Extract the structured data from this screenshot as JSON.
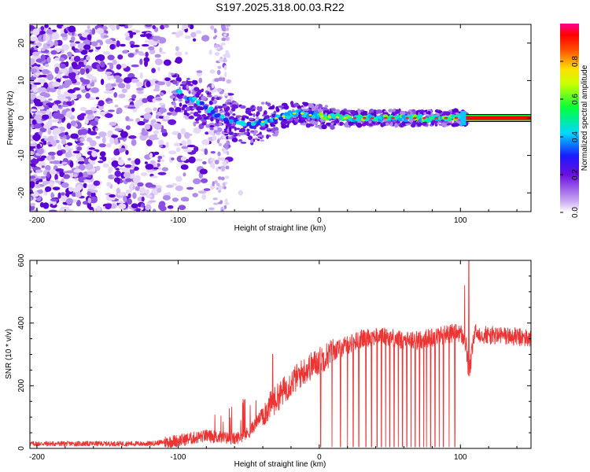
{
  "title": "S197.2025.318.00.03.R22",
  "chart_data": [
    {
      "type": "heatmap",
      "name": "spectrogram",
      "xlabel": "Height of straight line (km)",
      "ylabel": "Frequency (Hz)",
      "xlim": [
        -205,
        150
      ],
      "ylim": [
        -25,
        25
      ],
      "x_ticks": [
        -200,
        -100,
        0,
        100
      ],
      "x_tick_labels": [
        "-200",
        "-100",
        "0",
        "100"
      ],
      "y_ticks": [
        -20,
        -10,
        0,
        10,
        20
      ],
      "y_tick_labels": [
        "-20",
        "-10",
        "0",
        "10",
        "20"
      ],
      "colorbar": {
        "label": "Normalized spectral amplitude",
        "range": [
          0,
          1
        ],
        "ticks": [
          0.0,
          0.2,
          0.4,
          0.6,
          0.8
        ],
        "tick_labels": [
          "0.0",
          "0.2",
          "0.4",
          "0.6",
          "0.8"
        ]
      },
      "ridge": {
        "x": [
          -100,
          -90,
          -80,
          -70,
          -60,
          -50,
          -40,
          -30,
          -20,
          -15,
          -10,
          0,
          20,
          50,
          80,
          100,
          150
        ],
        "y": [
          7,
          5,
          3,
          0,
          -1,
          -2,
          -1,
          0,
          1,
          1.5,
          1,
          0.5,
          0,
          0,
          0,
          0,
          0
        ]
      }
    },
    {
      "type": "line",
      "name": "snr",
      "xlabel": "Height of straight line (km)",
      "ylabel": "SNR (10 * v/v)",
      "xlim": [
        -205,
        150
      ],
      "ylim": [
        0,
        600
      ],
      "x_ticks": [
        -200,
        -100,
        0,
        100
      ],
      "x_tick_labels": [
        "-200",
        "-100",
        "0",
        "100"
      ],
      "y_ticks": [
        0,
        200,
        400,
        600
      ],
      "y_tick_labels": [
        "0",
        "200",
        "400",
        "600"
      ],
      "color": "#ee3333",
      "trend": {
        "x": [
          -205,
          -120,
          -100,
          -80,
          -60,
          -50,
          -40,
          -30,
          -20,
          -10,
          0,
          10,
          20,
          30,
          40,
          50,
          60,
          70,
          80,
          90,
          100,
          104,
          106,
          110,
          120,
          130,
          150
        ],
        "y": [
          15,
          15,
          25,
          40,
          30,
          50,
          110,
          160,
          210,
          250,
          280,
          310,
          330,
          350,
          360,
          355,
          345,
          345,
          355,
          365,
          370,
          330,
          230,
          370,
          360,
          360,
          350
        ]
      },
      "dropouts_x": [
        1,
        9,
        15,
        20,
        24,
        28,
        33,
        37,
        41,
        44,
        47,
        50,
        53,
        56,
        59,
        62,
        65,
        68,
        71,
        74,
        76,
        79,
        82,
        85,
        88,
        92,
        96
      ],
      "spikes": [
        {
          "x": -33,
          "y": 300
        },
        {
          "x": 106,
          "y": 600
        },
        {
          "x": 103,
          "y": 520
        }
      ]
    }
  ]
}
